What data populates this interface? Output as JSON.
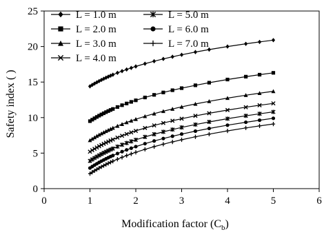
{
  "chart_data": {
    "type": "line",
    "title": "",
    "xlabel": "Modification factor (C",
    "xlabel_sub": "b",
    "xlabel_end": ")",
    "ylabel": "Safety index ( )",
    "xlim": [
      0,
      6
    ],
    "ylim": [
      0,
      25
    ],
    "xticks": [
      "0",
      "1",
      "2",
      "3",
      "4",
      "5",
      "6"
    ],
    "yticks": [
      "0",
      "5",
      "10",
      "15",
      "20",
      "25"
    ],
    "grid": false,
    "legend_position": "top-left",
    "x": [
      1.0,
      1.05,
      1.1,
      1.15,
      1.2,
      1.25,
      1.3,
      1.35,
      1.4,
      1.45,
      1.5,
      1.6,
      1.7,
      1.8,
      1.9,
      2.0,
      2.2,
      2.4,
      2.6,
      2.8,
      3.0,
      3.3,
      3.6,
      4.0,
      4.4,
      4.7,
      5.0
    ],
    "series": [
      {
        "name": "L = 1.0 m",
        "marker": "diamond",
        "y0": 14.4,
        "y5": 20.9
      },
      {
        "name": "L = 2.0 m",
        "marker": "square",
        "y0": 9.5,
        "y5": 16.3
      },
      {
        "name": "L = 3.0 m",
        "marker": "triangle",
        "y0": 6.8,
        "y5": 13.7
      },
      {
        "name": "L = 4.0 m",
        "marker": "x",
        "y0": 5.2,
        "y5": 12.0
      },
      {
        "name": "L = 5.0 m",
        "marker": "star",
        "y0": 3.9,
        "y5": 10.8
      },
      {
        "name": "L = 6.0 m",
        "marker": "circle",
        "y0": 2.9,
        "y5": 9.9
      },
      {
        "name": "L = 7.0 m",
        "marker": "plus",
        "y0": 2.1,
        "y5": 9.1
      }
    ]
  }
}
